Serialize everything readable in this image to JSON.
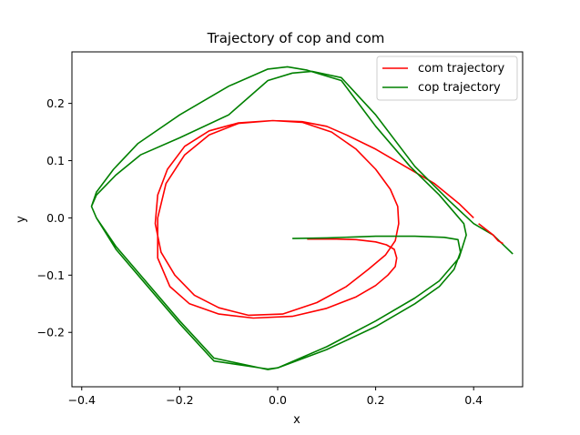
{
  "chart_data": {
    "type": "line",
    "title": "Trajectory of cop and com",
    "xlabel": "x",
    "ylabel": "y",
    "xlim": [
      -0.42,
      0.5
    ],
    "ylim": [
      -0.295,
      0.29
    ],
    "xticks": [
      -0.4,
      -0.2,
      0.0,
      0.2,
      0.4
    ],
    "xtick_labels": [
      "−0.4",
      "−0.2",
      "0.0",
      "0.2",
      "0.4"
    ],
    "yticks": [
      -0.2,
      -0.1,
      0.0,
      0.1,
      0.2
    ],
    "ytick_labels": [
      "−0.2",
      "−0.1",
      "0.0",
      "0.1",
      "0.2"
    ],
    "legend_position": "top-right",
    "series": [
      {
        "name": "com trajectory",
        "color": "#ff0000",
        "x": [
          0.06,
          0.12,
          0.16,
          0.18,
          0.2,
          0.222,
          0.238,
          0.243,
          0.24,
          0.225,
          0.2,
          0.16,
          0.1,
          0.03,
          -0.05,
          -0.12,
          -0.18,
          -0.22,
          -0.245,
          -0.245,
          -0.228,
          -0.19,
          -0.14,
          -0.08,
          -0.01,
          0.05,
          0.11,
          0.16,
          0.2,
          0.23,
          0.245,
          0.247,
          0.24,
          0.22,
          0.185,
          0.14,
          0.08,
          0.01,
          -0.06,
          -0.12,
          -0.17,
          -0.21,
          -0.238,
          -0.25,
          -0.245,
          -0.225,
          -0.19,
          -0.14,
          -0.08,
          -0.01,
          0.05,
          0.1,
          0.14,
          0.2,
          0.26,
          0.32,
          0.37,
          0.4
        ],
        "y": [
          -0.037,
          -0.037,
          -0.038,
          -0.04,
          -0.042,
          -0.047,
          -0.055,
          -0.07,
          -0.085,
          -0.1,
          -0.118,
          -0.138,
          -0.158,
          -0.172,
          -0.175,
          -0.168,
          -0.15,
          -0.12,
          -0.07,
          0.0,
          0.06,
          0.11,
          0.145,
          0.165,
          0.17,
          0.167,
          0.15,
          0.12,
          0.085,
          0.05,
          0.02,
          -0.01,
          -0.04,
          -0.065,
          -0.09,
          -0.12,
          -0.148,
          -0.168,
          -0.17,
          -0.157,
          -0.135,
          -0.1,
          -0.06,
          -0.01,
          0.04,
          0.085,
          0.125,
          0.152,
          0.166,
          0.17,
          0.168,
          0.16,
          0.145,
          0.12,
          0.09,
          0.06,
          0.025,
          0.0
        ]
      },
      {
        "name": "cop trajectory",
        "color": "#008000",
        "x": [
          0.03,
          0.1,
          0.2,
          0.28,
          0.34,
          0.368,
          0.373,
          0.36,
          0.33,
          0.28,
          0.2,
          0.1,
          0.0,
          -0.02,
          -0.13,
          -0.2,
          -0.27,
          -0.33,
          -0.37,
          -0.38,
          -0.37,
          -0.335,
          -0.285,
          -0.2,
          -0.1,
          -0.02,
          0.02,
          0.06,
          0.13,
          0.2,
          0.27,
          0.33,
          0.38,
          0.385,
          0.37,
          0.33,
          0.28,
          0.2,
          0.1,
          0.0,
          -0.02,
          -0.13,
          -0.2,
          -0.27,
          -0.33,
          -0.37,
          -0.38,
          -0.37,
          -0.33,
          -0.28,
          -0.2,
          -0.1,
          -0.02,
          0.03,
          0.07,
          0.13,
          0.2,
          0.28,
          0.35,
          0.4,
          0.44,
          0.48
        ],
        "y": [
          -0.036,
          -0.035,
          -0.032,
          -0.032,
          -0.034,
          -0.038,
          -0.06,
          -0.09,
          -0.12,
          -0.15,
          -0.19,
          -0.23,
          -0.262,
          -0.265,
          -0.245,
          -0.18,
          -0.11,
          -0.05,
          0.0,
          0.02,
          0.045,
          0.085,
          0.13,
          0.18,
          0.23,
          0.26,
          0.264,
          0.258,
          0.24,
          0.16,
          0.09,
          0.04,
          -0.01,
          -0.03,
          -0.07,
          -0.11,
          -0.14,
          -0.18,
          -0.225,
          -0.262,
          -0.264,
          -0.25,
          -0.185,
          -0.115,
          -0.055,
          0.0,
          0.02,
          0.04,
          0.075,
          0.11,
          0.14,
          0.18,
          0.24,
          0.253,
          0.256,
          0.245,
          0.18,
          0.09,
          0.03,
          -0.01,
          -0.03,
          -0.063
        ]
      },
      {
        "name": "com trajectory",
        "color": "#ff0000",
        "x": [
          0.41,
          0.44,
          0.45,
          0.46
        ],
        "y": [
          -0.01,
          -0.03,
          -0.04,
          -0.045
        ],
        "legend": false
      }
    ]
  }
}
